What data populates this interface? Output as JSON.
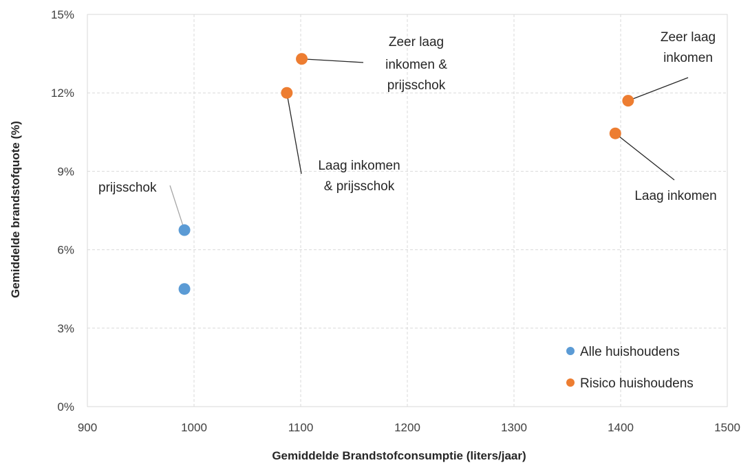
{
  "chart_data": {
    "type": "scatter",
    "title": "",
    "xlabel": "Gemiddelde Brandstofconsumptie (liters/jaar)",
    "ylabel": "Gemiddelde brandstofquote (%)",
    "xlim": [
      900,
      1500
    ],
    "ylim": [
      0,
      15
    ],
    "x_ticks": [
      900,
      1000,
      1100,
      1200,
      1300,
      1400,
      1500
    ],
    "y_ticks": [
      0,
      3,
      6,
      9,
      12,
      15
    ],
    "y_tick_suffix": "%",
    "grid": true,
    "legend_position": "bottom-right",
    "series": [
      {
        "name": "Alle huishoudens",
        "color": "#5b9bd5",
        "points": [
          {
            "x": 991,
            "y": 4.5,
            "label": ""
          },
          {
            "x": 991,
            "y": 6.75,
            "label": "prijsschok"
          }
        ]
      },
      {
        "name": "Risico huishoudens",
        "color": "#ed7d31",
        "points": [
          {
            "x": 1101,
            "y": 13.3,
            "label": "Zeer laag inkomen & prijsschok"
          },
          {
            "x": 1087,
            "y": 12.0,
            "label": "Laag inkomen & prijsschok"
          },
          {
            "x": 1407,
            "y": 11.7,
            "label": "Zeer laag inkomen"
          },
          {
            "x": 1395,
            "y": 10.45,
            "label": "Laag inkomen"
          }
        ]
      }
    ]
  },
  "annotations": {
    "prijsschok": [
      "prijsschok"
    ],
    "zeer_laag_prijsschok": [
      "Zeer laag",
      "inkomen &",
      "prijsschok"
    ],
    "laag_prijsschok": [
      "Laag inkomen",
      "& prijsschok"
    ],
    "zeer_laag": [
      "Zeer laag",
      "inkomen"
    ],
    "laag": [
      "Laag inkomen"
    ]
  }
}
